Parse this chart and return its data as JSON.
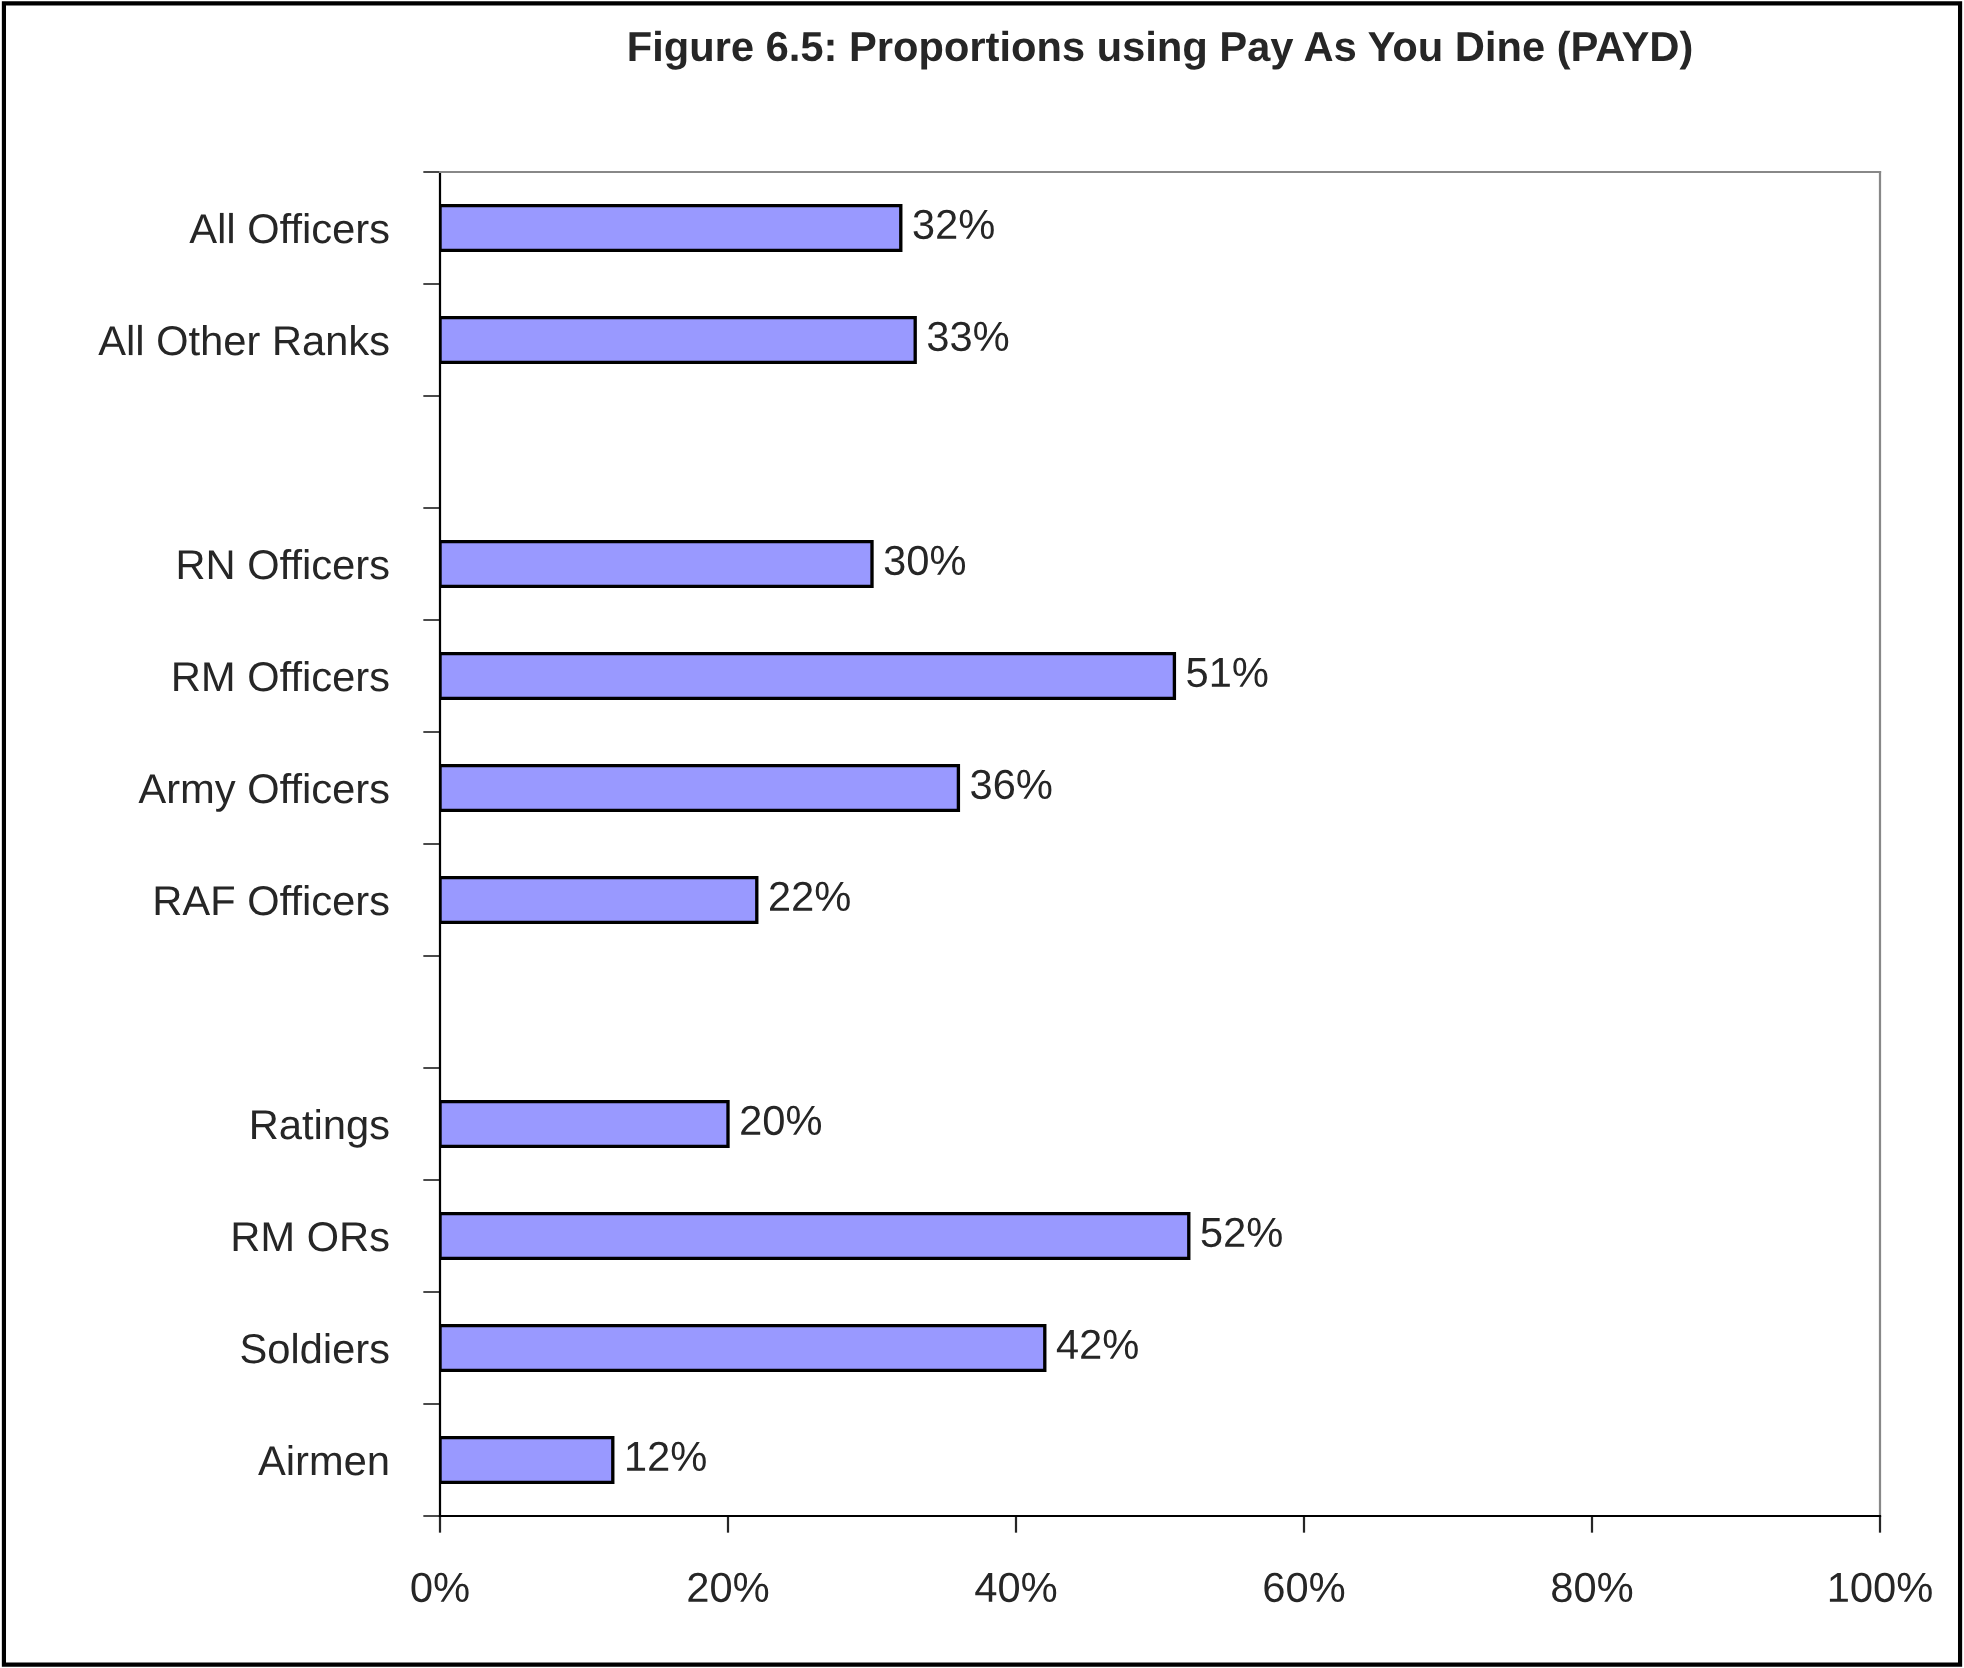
{
  "chart_data": {
    "type": "bar",
    "orientation": "horizontal",
    "title": "Figure 6.5: Proportions using Pay As You Dine (PAYD)",
    "categories": [
      "All Officers",
      "All Other Ranks",
      null,
      "RN Officers",
      "RM Officers",
      "Army Officers",
      "RAF Officers",
      null,
      "Ratings",
      "RM ORs",
      "Soldiers",
      "Airmen"
    ],
    "values": [
      32,
      33,
      null,
      30,
      51,
      36,
      22,
      null,
      20,
      52,
      42,
      12
    ],
    "value_labels": [
      "32%",
      "33%",
      null,
      "30%",
      "51%",
      "36%",
      "22%",
      null,
      "20%",
      "52%",
      "42%",
      "12%"
    ],
    "color": "#9999ff",
    "xlim": [
      0,
      100
    ],
    "xticks": [
      {
        "value": 0,
        "label": "0%"
      },
      {
        "value": 20,
        "label": "20%"
      },
      {
        "value": 40,
        "label": "40%"
      },
      {
        "value": 60,
        "label": "60%"
      },
      {
        "value": 80,
        "label": "80%"
      },
      {
        "value": 100,
        "label": "100%"
      }
    ],
    "grid": false
  }
}
